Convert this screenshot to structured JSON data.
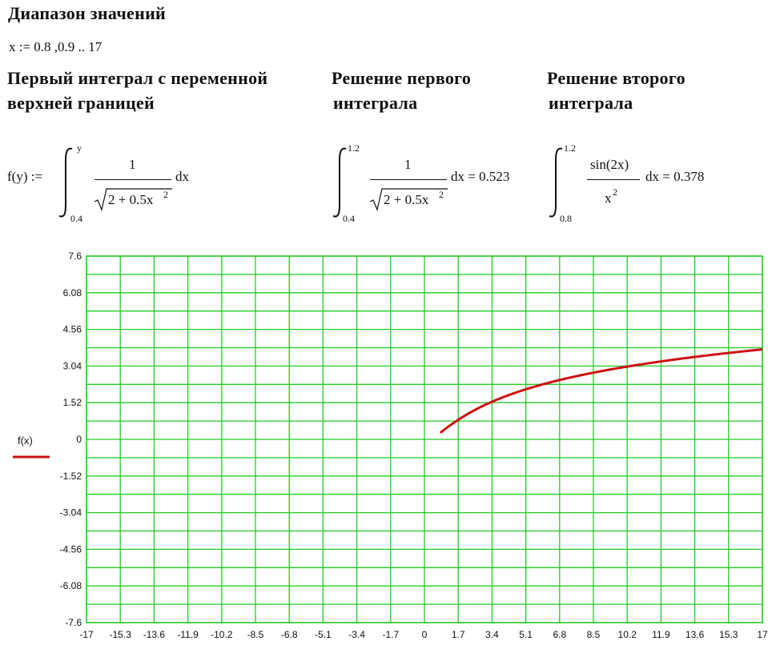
{
  "headers": {
    "range_title": "Диапазон значений",
    "range_def": "x := 0.8 ,0.9 .. 17",
    "first_integral_line1": "Первый интеграл с переменной",
    "first_integral_line2": "верхней границей",
    "solution1_line1": "Решение первого",
    "solution1_line2": "интеграла",
    "solution2_line1": "Решение второго",
    "solution2_line2": "интеграла"
  },
  "formula_f": {
    "lhs": "f(y) :=",
    "upper": "y",
    "lower": "0.4",
    "numerator": "1",
    "denominator": "2 + 0.5x",
    "power": "2",
    "dx": "dx"
  },
  "integral1": {
    "upper": "1.2",
    "lower": "0.4",
    "numerator": "1",
    "denominator": "2 + 0.5x",
    "power": "2",
    "dx_result": "dx = 0.523"
  },
  "integral2": {
    "upper": "1.2",
    "lower": "0.8",
    "numerator": "sin(2x)",
    "denominator": "x",
    "power": "2",
    "dx_result": "dx = 0.378"
  },
  "chart_data": {
    "type": "line",
    "legend": "f(x)",
    "series_color": "#cc1111",
    "grid_color": "#22cc22",
    "grid": true,
    "xlim": [
      -17,
      17
    ],
    "ylim": [
      -7.6,
      7.6
    ],
    "x_ticks": [
      "-17",
      "-15.3",
      "-13.6",
      "-11.9",
      "-10.2",
      "-8.5",
      "-6.8",
      "-5.1",
      "-3.4",
      "-1.7",
      "0",
      "1.7",
      "3.4",
      "5.1",
      "6.8",
      "8.5",
      "10.2",
      "11.9",
      "13.6",
      "15.3",
      "17"
    ],
    "y_ticks": [
      "7.6",
      "6.08",
      "4.56",
      "3.04",
      "1.52",
      "0",
      "-1.52",
      "-3.04",
      "-4.56",
      "-6.08",
      "-7.6"
    ],
    "x_range": [
      0.8,
      17
    ],
    "x_step": 0.1,
    "lower_limit": 0.4
  }
}
